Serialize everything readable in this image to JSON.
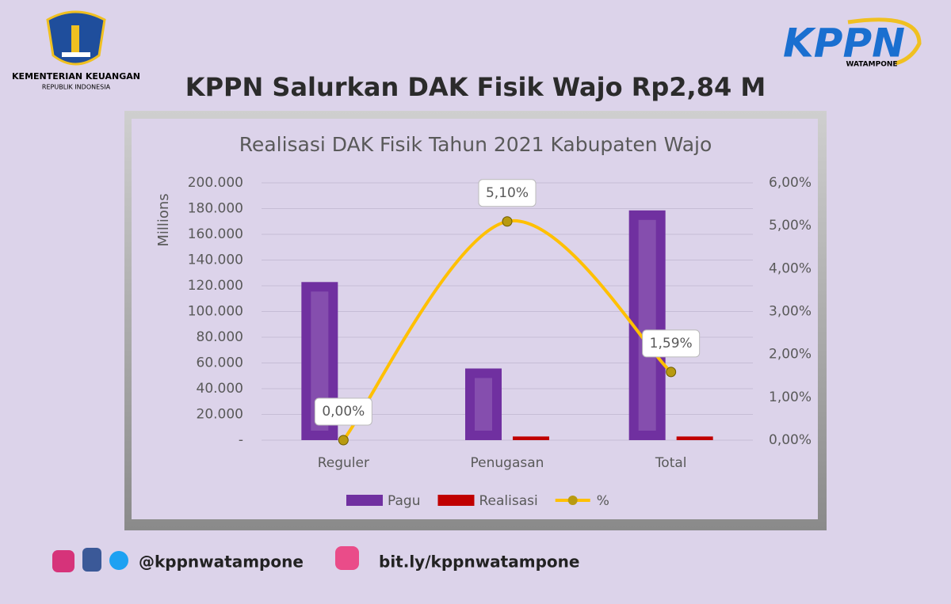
{
  "page": {
    "ministry": "KEMENTERIAN KEUANGAN",
    "ministry_sub": "REPUBLIK INDONESIA",
    "brand": "KPPN",
    "brand_sub": "WATAMPONE",
    "headline": "KPPN Salurkan DAK Fisik Wajo Rp2,84 M",
    "social": "@kppnwatampone",
    "link": "bit.ly/kppnwatampone"
  },
  "chart_data": {
    "type": "bar-line",
    "title": "Realisasi DAK Fisik Tahun 2021 Kabupaten Wajo",
    "y_label": "Millions",
    "categories": [
      "Reguler",
      "Penugasan",
      "Total"
    ],
    "series": [
      {
        "name": "Pagu",
        "color": "#7030a0",
        "values": [
          122900,
          55700,
          178600
        ]
      },
      {
        "name": "Realisasi",
        "color": "#c00000",
        "values": [
          0,
          2840,
          2840
        ]
      },
      {
        "name": "%",
        "color": "#ffc000",
        "axis": "y2",
        "values": [
          0,
          5.1,
          1.59
        ],
        "value_labels": [
          "0,00%",
          "5,10%",
          "1,59%"
        ]
      }
    ],
    "ylim": [
      0,
      200000
    ],
    "yticks": [
      {
        "value": 0,
        "label": "-"
      },
      {
        "value": 20000,
        "label": "20.000"
      },
      {
        "value": 40000,
        "label": "40.000"
      },
      {
        "value": 60000,
        "label": "60.000"
      },
      {
        "value": 80000,
        "label": "80.000"
      },
      {
        "value": 100000,
        "label": "100.000"
      },
      {
        "value": 120000,
        "label": "120.000"
      },
      {
        "value": 140000,
        "label": "140.000"
      },
      {
        "value": 160000,
        "label": "160.000"
      },
      {
        "value": 180000,
        "label": "180.000"
      },
      {
        "value": 200000,
        "label": "200.000"
      }
    ],
    "y2lim": [
      0,
      6
    ],
    "y2ticks": [
      {
        "value": 0,
        "label": "0,00%"
      },
      {
        "value": 1,
        "label": "1,00%"
      },
      {
        "value": 2,
        "label": "2,00%"
      },
      {
        "value": 3,
        "label": "3,00%"
      },
      {
        "value": 4,
        "label": "4,00%"
      },
      {
        "value": 5,
        "label": "5,00%"
      },
      {
        "value": 6,
        "label": "6,00%"
      }
    ],
    "grid": true,
    "legend": "bottom"
  }
}
